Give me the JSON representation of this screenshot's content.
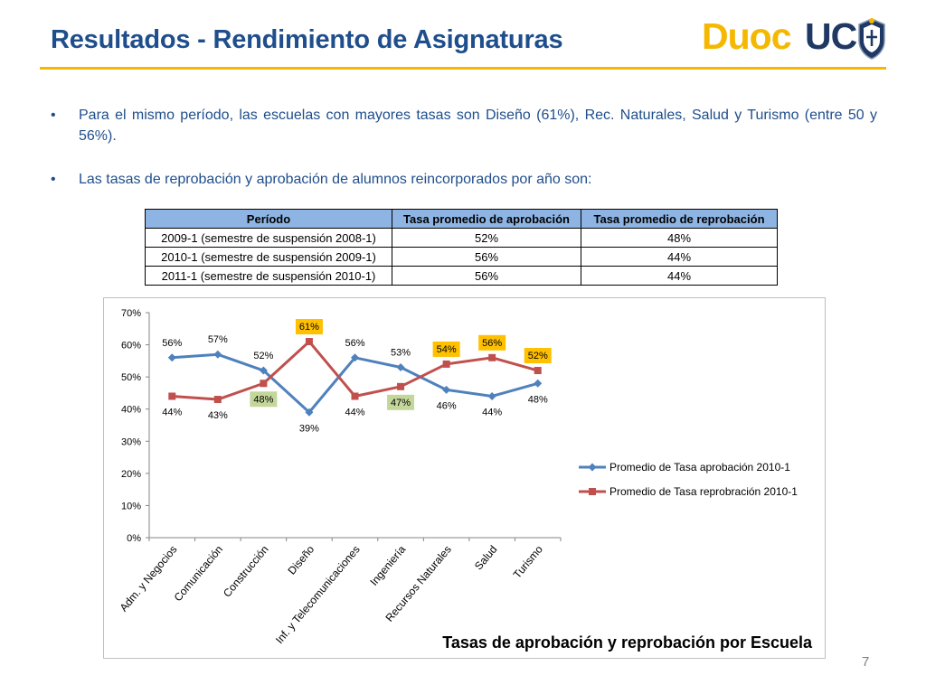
{
  "title": "Resultados - Rendimiento de Asignaturas",
  "logo": {
    "part1": "Duoc",
    "part2": "UC"
  },
  "bullets": [
    {
      "text": "Para el mismo período, las escuelas con mayores tasas son Diseño (61%), Rec. Naturales, Salud y Turismo (entre  50 y 56%)."
    },
    {
      "text": "Las tasas de reprobación y aprobación de alumnos reincorporados por año son:"
    }
  ],
  "bullet_symbol": "•",
  "table": {
    "headers": [
      "Período",
      "Tasa promedio de aprobación",
      "Tasa promedio de reprobación"
    ],
    "rows": [
      [
        "2009-1 (semestre de suspensión 2008-1)",
        "52%",
        "48%"
      ],
      [
        "2010-1 (semestre de suspensión 2009-1)",
        "56%",
        "44%"
      ],
      [
        "2011-1 (semestre de suspensión 2010-1)",
        "56%",
        "44%"
      ]
    ]
  },
  "chart_data": {
    "type": "line",
    "title": "Tasas de aprobación y reprobación por Escuela",
    "categories": [
      "Adm. y Negocios",
      "Comunicación",
      "Construcción",
      "Diseño",
      "Inf. y Telecomunicaciones",
      "Ingeniería",
      "Recursos Naturales",
      "Salud",
      "Turismo"
    ],
    "ylim": [
      0,
      70
    ],
    "yticks": [
      0,
      10,
      20,
      30,
      40,
      50,
      60,
      70
    ],
    "ytick_labels": [
      "0%",
      "10%",
      "20%",
      "30%",
      "40%",
      "50%",
      "60%",
      "70%"
    ],
    "grid": false,
    "legend_position": "right",
    "series": [
      {
        "name": "Promedio de Tasa aprobación 2010-1",
        "color": "#4f81bd",
        "marker": "diamond",
        "values": [
          56,
          57,
          52,
          39,
          56,
          53,
          46,
          44,
          48
        ],
        "labels": [
          "56%",
          "57%",
          "52%",
          "39%",
          "56%",
          "53%",
          "46%",
          "44%",
          "48%"
        ]
      },
      {
        "name": "Promedio de Tasa reprobración 2010-1",
        "color": "#c0504d",
        "marker": "square",
        "values": [
          44,
          43,
          48,
          61,
          44,
          47,
          54,
          56,
          52
        ],
        "labels": [
          "44%",
          "43%",
          "48%",
          "61%",
          "44%",
          "47%",
          "54%",
          "56%",
          "52%"
        ]
      }
    ],
    "highlights": [
      {
        "series": 1,
        "index": 2,
        "color": "#c4d79b"
      },
      {
        "series": 1,
        "index": 3,
        "color": "#ffc000"
      },
      {
        "series": 1,
        "index": 5,
        "color": "#c4d79b"
      },
      {
        "series": 1,
        "index": 6,
        "color": "#ffc000"
      },
      {
        "series": 1,
        "index": 7,
        "color": "#ffc000"
      },
      {
        "series": 1,
        "index": 8,
        "color": "#ffc000"
      }
    ]
  },
  "page_number": "7"
}
